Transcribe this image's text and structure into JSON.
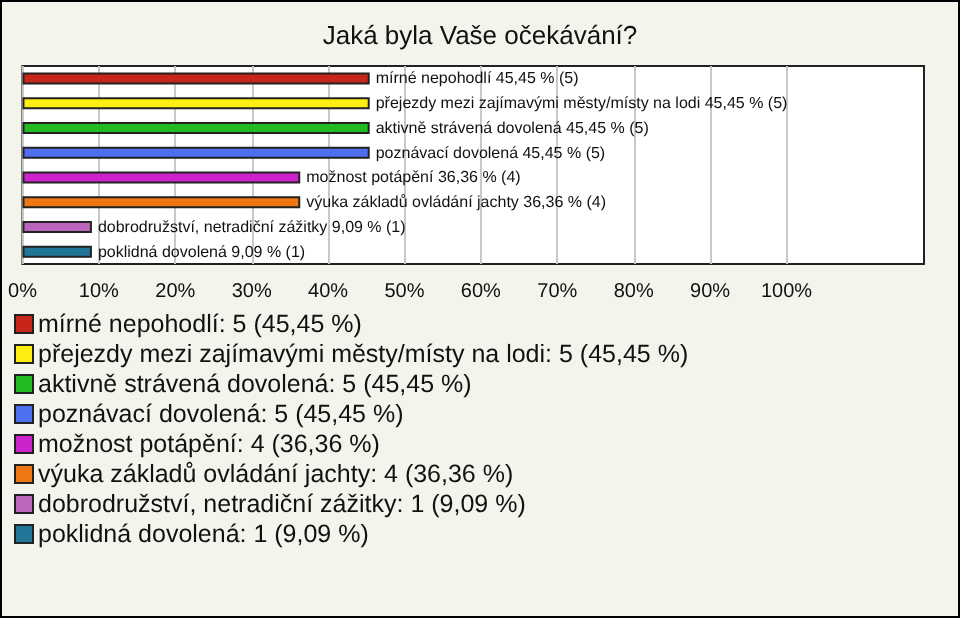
{
  "chart_data": {
    "type": "bar",
    "orientation": "horizontal",
    "title": "Jaká byla Vaše očekávání?",
    "categories": [
      "mírné nepohodlí",
      "přejezdy mezi zajímavými městy/místy na lodi",
      "aktivně strávená dovolená",
      "poznávací dovolená",
      "možnost potápění",
      "výuka základů ovládání jachty",
      "dobrodružství, netradiční zážitky",
      "poklidná dovolená"
    ],
    "values": [
      45.45,
      45.45,
      45.45,
      45.45,
      36.36,
      36.36,
      9.09,
      9.09
    ],
    "value_labels": [
      "45,45 % (5)",
      "45,45 % (5)",
      "45,45 % (5)",
      "45,45 % (5)",
      "36,36 % (4)",
      "36,36 % (4)",
      "9,09 % (1)",
      "9,09 % (1)"
    ],
    "colors": [
      "#c8261a",
      "#ffee11",
      "#22bb22",
      "#4d6ff0",
      "#cc22cc",
      "#ee7711",
      "#bb66bb",
      "#227799"
    ],
    "xlim": [
      0,
      118
    ],
    "xticks": [
      {
        "value": 0,
        "label": "0%"
      },
      {
        "value": 10,
        "label": "10%"
      },
      {
        "value": 20,
        "label": "20%"
      },
      {
        "value": 30,
        "label": "30%"
      },
      {
        "value": 40,
        "label": "40%"
      },
      {
        "value": 50,
        "label": "50%"
      },
      {
        "value": 60,
        "label": "60%"
      },
      {
        "value": 70,
        "label": "70%"
      },
      {
        "value": 80,
        "label": "80%"
      },
      {
        "value": 90,
        "label": "90%"
      },
      {
        "value": 100,
        "label": "100%"
      }
    ],
    "grid": "x",
    "tick_labels": "x",
    "annotations": [
      "mírné nepohodlí: 5 (45,45 %)",
      "přejezdy mezi zajímavými městy/místy na lodi: 5 (45,45 %)",
      "aktivně strávená dovolená: 5 (45,45 %)",
      "poznávací dovolená: 5 (45,45 %)",
      "možnost potápění: 4 (36,36 %)",
      "výuka základů ovládání jachty: 4 (36,36 %)",
      "dobrodružství, netradiční zážitky: 1 (9,09 %)",
      "poklidná dovolená: 1 (9,09 %)"
    ]
  }
}
